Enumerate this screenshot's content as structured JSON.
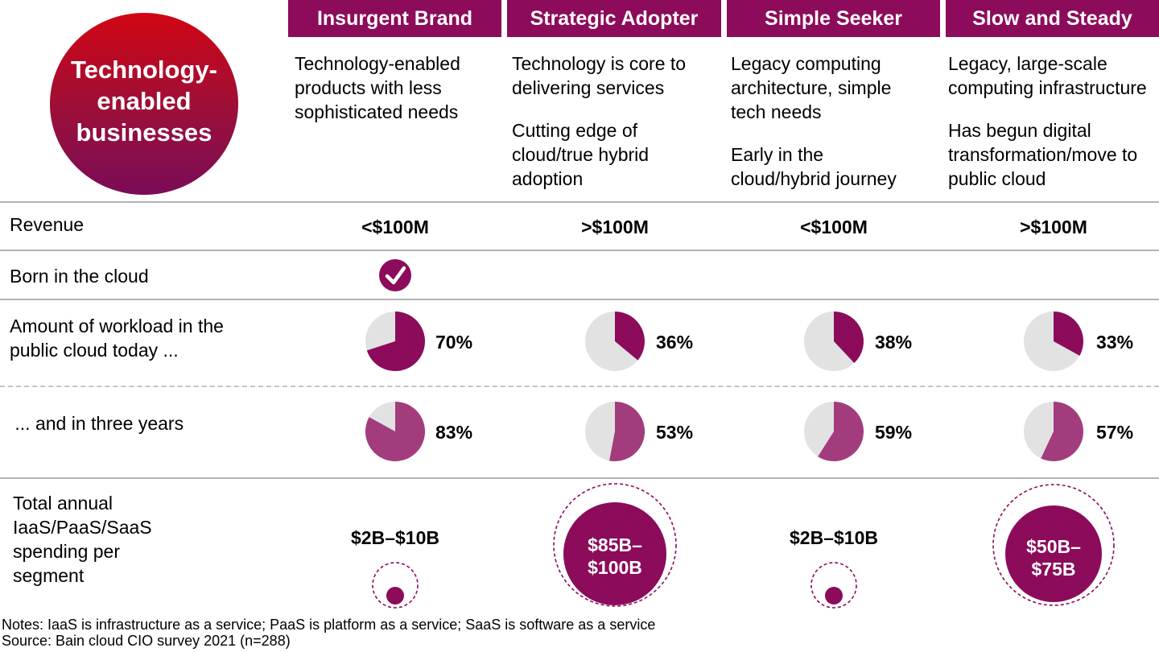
{
  "hero": {
    "title": "Technology-\nenabled\nbusinesses"
  },
  "segments": [
    {
      "name": "Insurgent Brand",
      "descriptions": [
        "Technology-enabled products with less sophisticated needs"
      ],
      "revenue": "<$100M",
      "born_in_cloud": true,
      "spend_label": "$2B–$10B",
      "spend_size": "small"
    },
    {
      "name": "Strategic Adopter",
      "descriptions": [
        "Technology is core to delivering services",
        "Cutting edge of cloud/true hybrid adoption"
      ],
      "revenue": ">$100M",
      "born_in_cloud": false,
      "spend_label": "$85B–\n$100B",
      "spend_size": "large"
    },
    {
      "name": "Simple Seeker",
      "descriptions": [
        "Legacy computing architecture, simple tech needs",
        "Early in the cloud/hybrid journey"
      ],
      "revenue": "<$100M",
      "born_in_cloud": false,
      "spend_label": "$2B–$10B",
      "spend_size": "small"
    },
    {
      "name": "Slow and Steady",
      "descriptions": [
        "Legacy, large-scale computing infrastructure",
        "Has begun digital transformation/move to public cloud"
      ],
      "revenue": ">$100M",
      "born_in_cloud": false,
      "spend_label": "$50B–\n$75B",
      "spend_size": "medium"
    }
  ],
  "rows": {
    "revenue": "Revenue",
    "born": "Born in the cloud",
    "today": "Amount of workload in the public cloud today ...",
    "future": " ... and in three years",
    "spend": "Total annual IaaS/PaaS/SaaS spending per segment"
  },
  "chart_data": {
    "type": "pie",
    "title": "Amount of workload in the public cloud",
    "categories": [
      "Insurgent Brand",
      "Strategic Adopter",
      "Simple Seeker",
      "Slow and Steady"
    ],
    "unit": "%",
    "series": [
      {
        "name": "today",
        "values": [
          70,
          36,
          38,
          33
        ],
        "labels": [
          "70%",
          "36%",
          "38%",
          "33%"
        ]
      },
      {
        "name": "in three years",
        "values": [
          83,
          53,
          59,
          57
        ],
        "labels": [
          "83%",
          "53%",
          "59%",
          "57%"
        ]
      }
    ]
  },
  "colors": {
    "brand": "#8c0b5b",
    "pie_today": "#8c0b5b",
    "pie_future": "#a33c7d",
    "pie_rest": "#e2e2e2",
    "rule": "#b3b3b3"
  },
  "notes": {
    "line1": "Notes: IaaS is infrastructure as a service; PaaS is platform as a service; SaaS is software as a service",
    "line2": "Source: Bain cloud CIO survey 2021 (n=288)"
  }
}
